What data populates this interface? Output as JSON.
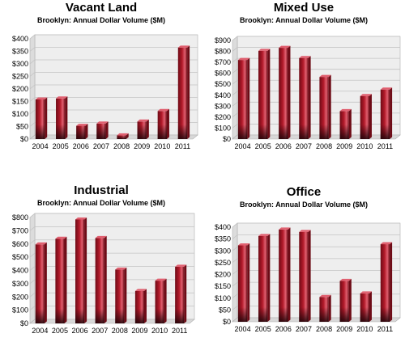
{
  "page": {
    "background": "#ffffff"
  },
  "style": {
    "bar_color": "#b31a2a",
    "bar_dark": "#6e0b16",
    "bar_light": "#e06070",
    "bar_base": "#1c0509",
    "floor": "#d8d8d8",
    "wall": "#eeeeee",
    "grid": "#c4c4c4"
  },
  "chart_data": [
    {
      "type": "bar",
      "title": "Vacant Land",
      "subtitle": "Brooklyn: Annual Dollar Volume ($M)",
      "categories": [
        "2004",
        "2005",
        "2006",
        "2007",
        "2008",
        "2009",
        "2010",
        "2011"
      ],
      "values": [
        158,
        162,
        53,
        62,
        15,
        70,
        112,
        365
      ],
      "ylim": [
        0,
        400
      ],
      "yticks": [
        "$0",
        "$50",
        "$100",
        "$150",
        "$200",
        "$250",
        "$300",
        "$350",
        "$400"
      ],
      "grid": true
    },
    {
      "type": "bar",
      "title": "Mixed Use",
      "subtitle": "Brooklyn: Annual Dollar Volume ($M)",
      "categories": [
        "2004",
        "2005",
        "2006",
        "2007",
        "2008",
        "2009",
        "2010",
        "2011"
      ],
      "values": [
        722,
        805,
        833,
        740,
        567,
        255,
        393,
        452
      ],
      "ylim": [
        0,
        900
      ],
      "yticks": [
        "$0",
        "$100",
        "$200",
        "$300",
        "$400",
        "$500",
        "$600",
        "$700",
        "$800",
        "$900"
      ],
      "grid": true
    },
    {
      "type": "bar",
      "title": "Industrial",
      "subtitle": "Brooklyn: Annual Dollar Volume ($M)",
      "categories": [
        "2004",
        "2005",
        "2006",
        "2007",
        "2008",
        "2009",
        "2010",
        "2011"
      ],
      "values": [
        597,
        640,
        785,
        645,
        407,
        245,
        323,
        428
      ],
      "ylim": [
        0,
        800
      ],
      "yticks": [
        "$0",
        "$100",
        "$200",
        "$300",
        "$400",
        "$500",
        "$600",
        "$700",
        "$800"
      ],
      "grid": true
    },
    {
      "type": "bar",
      "title": "Office",
      "subtitle": "Brooklyn: Annual Dollar Volume ($M)",
      "categories": [
        "2004",
        "2005",
        "2006",
        "2007",
        "2008",
        "2009",
        "2010",
        "2011"
      ],
      "values": [
        323,
        363,
        390,
        380,
        105,
        173,
        120,
        328
      ],
      "ylim": [
        0,
        400
      ],
      "yticks": [
        "$0",
        "$50",
        "$100",
        "$150",
        "$200",
        "$250",
        "$300",
        "$350",
        "$400"
      ],
      "grid": true
    }
  ]
}
